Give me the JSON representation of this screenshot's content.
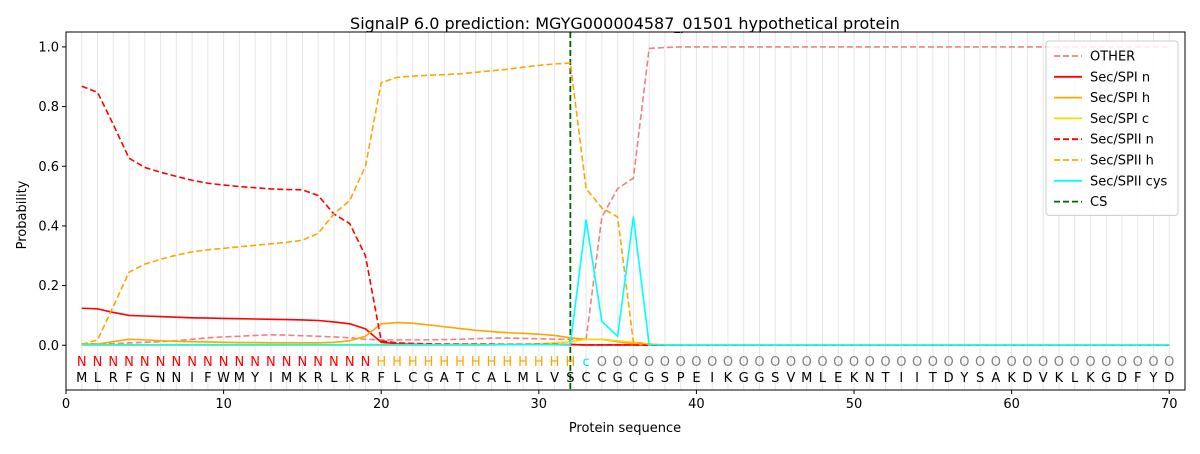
{
  "chart_data": {
    "type": "line",
    "title": "SignalP 6.0 prediction: MGYG000004587_01501 hypothetical protein",
    "xlabel": "Protein sequence",
    "ylabel": "Probability",
    "xlim": [
      0,
      71
    ],
    "ylim": [
      -0.15,
      1.05
    ],
    "x_ticks": [
      0,
      10,
      20,
      30,
      40,
      50,
      60,
      70
    ],
    "y_ticks": [
      0.0,
      0.2,
      0.4,
      0.6,
      0.8,
      1.0
    ],
    "x_tick_labels": [
      "0",
      "10",
      "20",
      "30",
      "40",
      "50",
      "60",
      "70"
    ],
    "y_tick_labels": [
      "0.0",
      "0.2",
      "0.4",
      "0.6",
      "0.8",
      "1.0"
    ],
    "grid": "vertical lines at each residue",
    "legend_position": "top-right",
    "sequence": [
      "M",
      "L",
      "R",
      "F",
      "G",
      "N",
      "N",
      "I",
      "F",
      "W",
      "M",
      "Y",
      "I",
      "M",
      "K",
      "R",
      "L",
      "K",
      "R",
      "F",
      "L",
      "C",
      "G",
      "A",
      "T",
      "C",
      "A",
      "L",
      "M",
      "L",
      "V",
      "S",
      "C",
      "C",
      "G",
      "C",
      "G",
      "S",
      "P",
      "E",
      "I",
      "K",
      "G",
      "G",
      "S",
      "V",
      "M",
      "L",
      "E",
      "K",
      "N",
      "T",
      "I",
      "I",
      "T",
      "D",
      "Y",
      "S",
      "A",
      "K",
      "D",
      "V",
      "K",
      "L",
      "K",
      "G",
      "D",
      "F",
      "Y",
      "D"
    ],
    "labels": [
      "N",
      "N",
      "N",
      "N",
      "N",
      "N",
      "N",
      "N",
      "N",
      "N",
      "N",
      "N",
      "N",
      "N",
      "N",
      "N",
      "N",
      "N",
      "N",
      "H",
      "H",
      "H",
      "H",
      "H",
      "H",
      "H",
      "H",
      "H",
      "H",
      "H",
      "H",
      "H",
      "c",
      "O",
      "O",
      "O",
      "O",
      "O",
      "O",
      "O",
      "O",
      "O",
      "O",
      "O",
      "O",
      "O",
      "O",
      "O",
      "O",
      "O",
      "O",
      "O",
      "O",
      "O",
      "O",
      "O",
      "O",
      "O",
      "O",
      "O",
      "O",
      "O",
      "O",
      "O",
      "O",
      "O",
      "O",
      "O",
      "O",
      "O"
    ],
    "label_colors": {
      "N": "#ff0000",
      "H": "#ffa500",
      "c": "#00e5ee",
      "O": "#808080"
    },
    "cs_position": 32,
    "series": [
      {
        "name": "OTHER",
        "color": "#f08080",
        "dash": "dashed",
        "values": [
          0.005,
          0.005,
          0.005,
          0.008,
          0.01,
          0.012,
          0.015,
          0.02,
          0.025,
          0.028,
          0.03,
          0.033,
          0.035,
          0.034,
          0.032,
          0.03,
          0.028,
          0.025,
          0.02,
          0.018,
          0.018,
          0.018,
          0.018,
          0.019,
          0.02,
          0.022,
          0.024,
          0.024,
          0.023,
          0.022,
          0.02,
          0.02,
          0.02,
          0.43,
          0.525,
          0.56,
          0.995,
          0.998,
          1,
          1,
          1,
          1,
          1,
          1,
          1,
          1,
          1,
          1,
          1,
          1,
          1,
          1,
          1,
          1,
          1,
          1,
          1,
          1,
          1,
          1,
          1,
          1,
          1,
          1,
          1,
          1,
          1,
          1,
          1,
          1
        ]
      },
      {
        "name": "Sec/SPI n",
        "color": "#ff0000",
        "dash": "solid",
        "values": [
          0.124,
          0.122,
          0.11,
          0.1,
          0.098,
          0.096,
          0.094,
          0.092,
          0.091,
          0.09,
          0.089,
          0.088,
          0.087,
          0.086,
          0.085,
          0.083,
          0.078,
          0.072,
          0.055,
          0.01,
          0.005,
          0.003,
          0.002,
          0.002,
          0.002,
          0.002,
          0.002,
          0.002,
          0.002,
          0.002,
          0.002,
          0.002,
          0.001,
          0.001,
          0.001,
          0.001,
          0.001,
          0,
          0,
          0,
          0,
          0,
          0,
          0,
          0,
          0,
          0,
          0,
          0,
          0,
          0,
          0,
          0,
          0,
          0,
          0,
          0,
          0,
          0,
          0,
          0,
          0,
          0,
          0,
          0,
          0,
          0,
          0,
          0,
          0
        ]
      },
      {
        "name": "Sec/SPI h",
        "color": "#ffa500",
        "dash": "solid",
        "values": [
          0.004,
          0.004,
          0.012,
          0.02,
          0.018,
          0.015,
          0.013,
          0.012,
          0.011,
          0.01,
          0.009,
          0.009,
          0.008,
          0.008,
          0.008,
          0.008,
          0.01,
          0.015,
          0.03,
          0.072,
          0.076,
          0.074,
          0.068,
          0.062,
          0.056,
          0.05,
          0.046,
          0.042,
          0.04,
          0.037,
          0.033,
          0.025,
          0.02,
          0.02,
          0.012,
          0.005,
          0.002,
          0,
          0,
          0,
          0,
          0,
          0,
          0,
          0,
          0,
          0,
          0,
          0,
          0,
          0,
          0,
          0,
          0,
          0,
          0,
          0,
          0,
          0,
          0,
          0,
          0,
          0,
          0,
          0,
          0,
          0,
          0,
          0,
          0
        ]
      },
      {
        "name": "Sec/SPI c",
        "color": "#ffd700",
        "dash": "solid",
        "values": [
          0,
          0,
          0,
          0,
          0,
          0,
          0,
          0,
          0,
          0,
          0,
          0,
          0,
          0,
          0,
          0,
          0,
          0,
          0,
          0,
          0,
          0,
          0,
          0,
          0,
          0,
          0.001,
          0.002,
          0.003,
          0.005,
          0.008,
          0.012,
          0.02,
          0.02,
          0.015,
          0.01,
          0.005,
          0,
          0,
          0,
          0,
          0,
          0,
          0,
          0,
          0,
          0,
          0,
          0,
          0,
          0,
          0,
          0,
          0,
          0,
          0,
          0,
          0,
          0,
          0,
          0,
          0,
          0,
          0,
          0,
          0,
          0,
          0,
          0,
          0
        ]
      },
      {
        "name": "Sec/SPII n",
        "color": "#ff0000",
        "dash": "dashed",
        "values": [
          0.868,
          0.848,
          0.74,
          0.627,
          0.596,
          0.58,
          0.566,
          0.553,
          0.543,
          0.537,
          0.532,
          0.528,
          0.524,
          0.522,
          0.521,
          0.502,
          0.44,
          0.408,
          0.3,
          0.015,
          0.008,
          0.006,
          0.005,
          0.004,
          0.004,
          0.004,
          0.004,
          0.003,
          0.003,
          0.003,
          0.003,
          0.003,
          0.001,
          0.001,
          0.001,
          0.001,
          0,
          0,
          0,
          0,
          0,
          0,
          0,
          0,
          0,
          0,
          0,
          0,
          0,
          0,
          0,
          0,
          0,
          0,
          0,
          0,
          0,
          0,
          0,
          0,
          0,
          0,
          0,
          0,
          0,
          0,
          0,
          0,
          0,
          0
        ]
      },
      {
        "name": "Sec/SPII h",
        "color": "#ffa500",
        "dash": "dashed",
        "values": [
          0.003,
          0.018,
          0.13,
          0.245,
          0.272,
          0.288,
          0.302,
          0.313,
          0.32,
          0.325,
          0.33,
          0.335,
          0.34,
          0.345,
          0.352,
          0.375,
          0.44,
          0.485,
          0.6,
          0.88,
          0.898,
          0.902,
          0.905,
          0.907,
          0.91,
          0.915,
          0.92,
          0.925,
          0.932,
          0.938,
          0.943,
          0.946,
          0.525,
          0.46,
          0.43,
          0.01,
          0.003,
          0.001,
          0,
          0,
          0,
          0,
          0,
          0,
          0,
          0,
          0,
          0,
          0,
          0,
          0,
          0,
          0,
          0,
          0,
          0,
          0,
          0,
          0,
          0,
          0,
          0,
          0,
          0,
          0,
          0,
          0,
          0,
          0,
          0
        ]
      },
      {
        "name": "Sec/SPII cys",
        "color": "#00ffff",
        "dash": "solid",
        "values": [
          0.002,
          0.002,
          0.002,
          0.002,
          0.002,
          0.002,
          0.002,
          0.002,
          0.002,
          0.002,
          0.002,
          0.002,
          0.002,
          0.002,
          0.002,
          0.002,
          0.002,
          0.002,
          0.002,
          0.002,
          0.002,
          0.002,
          0.002,
          0.002,
          0.002,
          0.002,
          0.002,
          0.002,
          0.002,
          0.002,
          0.002,
          0.003,
          0.42,
          0.08,
          0.03,
          0.43,
          0.002,
          0.001,
          0.001,
          0.001,
          0.001,
          0.001,
          0.001,
          0.001,
          0.001,
          0.001,
          0.001,
          0.001,
          0.001,
          0.001,
          0.001,
          0.001,
          0.001,
          0.001,
          0.001,
          0.001,
          0.001,
          0.001,
          0.001,
          0.001,
          0.001,
          0.001,
          0.001,
          0.001,
          0.001,
          0.001,
          0.001,
          0.001,
          0.001,
          0.001
        ]
      }
    ],
    "legend": [
      {
        "name": "OTHER",
        "color": "#f08080",
        "dash": "dashed"
      },
      {
        "name": "Sec/SPI n",
        "color": "#ff0000",
        "dash": "solid"
      },
      {
        "name": "Sec/SPI h",
        "color": "#ffa500",
        "dash": "solid"
      },
      {
        "name": "Sec/SPI c",
        "color": "#ffd700",
        "dash": "solid"
      },
      {
        "name": "Sec/SPII n",
        "color": "#ff0000",
        "dash": "dashed"
      },
      {
        "name": "Sec/SPII h",
        "color": "#ffa500",
        "dash": "dashed"
      },
      {
        "name": "Sec/SPII cys",
        "color": "#00ffff",
        "dash": "solid"
      },
      {
        "name": "CS",
        "color": "#006400",
        "dash": "dashed"
      }
    ]
  }
}
